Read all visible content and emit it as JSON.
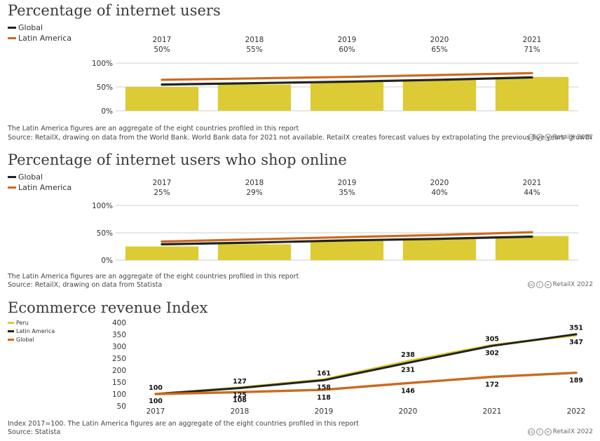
{
  "chart_data": [
    {
      "type": "bar",
      "title": "Percentage of internet users",
      "legend": [
        {
          "name": "Global",
          "color": "#222222"
        },
        {
          "name": "Latin America",
          "color": "#cc6a1e"
        }
      ],
      "categories": [
        "2017",
        "2018",
        "2019",
        "2020",
        "2021"
      ],
      "value_labels": [
        "50%",
        "55%",
        "60%",
        "65%",
        "71%"
      ],
      "series": [
        {
          "name": "Global",
          "kind": "bar",
          "values": [
            50,
            55,
            60,
            65,
            71
          ],
          "color": "#dccb35"
        },
        {
          "name": "Global",
          "kind": "line",
          "values": [
            55,
            58,
            61,
            65,
            70
          ],
          "color": "#222222"
        },
        {
          "name": "Latin America",
          "kind": "line",
          "values": [
            65,
            68,
            71,
            75,
            79
          ],
          "color": "#cc6a1e"
        }
      ],
      "yticks": [
        "100%",
        "50%",
        "0%"
      ],
      "ylim": [
        0,
        100
      ],
      "notes": [
        "The Latin America figures are an aggregate of the eight countries profiled in this report",
        "Source: RetailX, drawing on data from the World Bank. World Bank data for 2021 not available. RetailX creates forecast values by extrapolating the previous five years' growth"
      ],
      "credit": "RetailX 2022"
    },
    {
      "type": "bar",
      "title": "Percentage of internet users who shop online",
      "legend": [
        {
          "name": "Global",
          "color": "#222222"
        },
        {
          "name": "Latin America",
          "color": "#cc6a1e"
        }
      ],
      "categories": [
        "2017",
        "2018",
        "2019",
        "2020",
        "2021"
      ],
      "value_labels": [
        "25%",
        "29%",
        "35%",
        "40%",
        "44%"
      ],
      "series": [
        {
          "name": "Global",
          "kind": "bar",
          "values": [
            25,
            29,
            35,
            40,
            44
          ],
          "color": "#dccb35"
        },
        {
          "name": "Global",
          "kind": "line",
          "values": [
            29,
            32,
            36,
            39,
            43
          ],
          "color": "#222222"
        },
        {
          "name": "Latin America",
          "kind": "line",
          "values": [
            34,
            38,
            42,
            46,
            51
          ],
          "color": "#cc6a1e"
        }
      ],
      "yticks": [
        "100%",
        "50%",
        "0%"
      ],
      "ylim": [
        0,
        100
      ],
      "notes": [
        "The Latin America figures are an aggregate of the eight countries profiled in this report",
        "Source: RetailX, drawing on data from Statista"
      ],
      "credit": "RetailX 2022"
    },
    {
      "type": "line",
      "title": "Ecommerce revenue Index",
      "legend": [
        {
          "name": "Peru",
          "color": "#dccb35"
        },
        {
          "name": "Latin America",
          "color": "#222222"
        },
        {
          "name": "Global",
          "color": "#cc6a1e"
        }
      ],
      "x": [
        "2017",
        "2018",
        "2019",
        "2020",
        "2021",
        "2022"
      ],
      "series": [
        {
          "name": "Peru",
          "values": [
            100,
            127,
            161,
            238,
            305,
            347
          ],
          "color": "#dccb35",
          "labels": [
            "100",
            "127",
            "161",
            "238",
            "305",
            "347"
          ]
        },
        {
          "name": "Latin America",
          "values": [
            100,
            125,
            158,
            231,
            302,
            351
          ],
          "color": "#222222",
          "labels": [
            "100",
            "125",
            "158",
            "231",
            "302",
            "351"
          ]
        },
        {
          "name": "Global",
          "values": [
            100,
            108,
            118,
            146,
            172,
            189
          ],
          "color": "#cc6a1e",
          "labels": [
            "",
            "108",
            "118",
            "146",
            "172",
            "189"
          ]
        }
      ],
      "yticks": [
        "400",
        "350",
        "300",
        "250",
        "200",
        "150",
        "100",
        "50"
      ],
      "ylim": [
        50,
        400
      ],
      "notes": [
        "Index 2017=100. The Latin America figures are an aggregate of the eight countries profiled in this report",
        "Source: Statista"
      ],
      "credit": "RetailX 2022"
    }
  ],
  "cc_icons": [
    "cc-icon",
    "by-icon",
    "equal-icon"
  ],
  "cc_glyphs": [
    "cc",
    "i",
    "="
  ]
}
